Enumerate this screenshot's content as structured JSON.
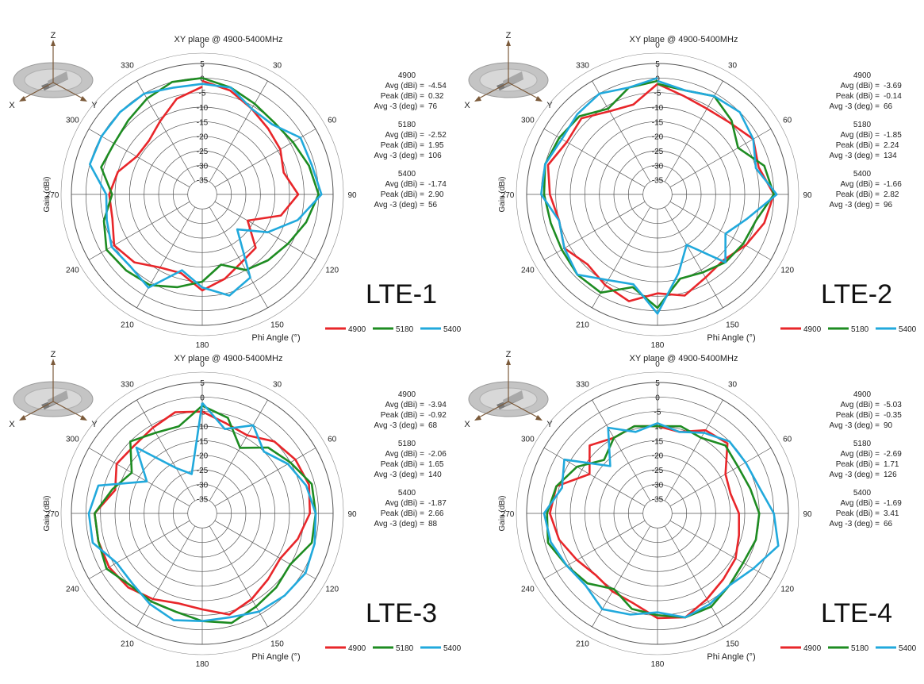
{
  "colors": {
    "4900": "#e8262a",
    "5180": "#1e8c22",
    "5400": "#21a9dc",
    "grid": "#555555",
    "text": "#222222"
  },
  "common": {
    "title": "XY plane @ 4900-5400MHz",
    "xlabel": "Phi  Angle (°)",
    "ylabel": "Gain  (dBi)",
    "angle_labels": [
      "0",
      "30",
      "60",
      "90",
      "120",
      "150",
      "180",
      "210",
      "240",
      "270",
      "300",
      "330"
    ],
    "radial_ticks": [
      "5",
      "0",
      "-5",
      "-10",
      "-15",
      "-20",
      "-25",
      "-30",
      "-35"
    ],
    "legend": [
      "4900",
      "5180",
      "5400"
    ],
    "icon_axes": [
      "Z",
      "X",
      "Y"
    ],
    "stat_labels": [
      "Avg (dBi) =",
      "Peak (dBi) =",
      "Avg -3 (deg) ="
    ]
  },
  "chart_data": [
    {
      "type": "polar-line",
      "label": "LTE-1",
      "rlim": [
        -40,
        5
      ],
      "theta_step_deg": 15,
      "stats": [
        {
          "freq": "4900",
          "avg": "-4.54",
          "peak": "0.32",
          "avg3": "76"
        },
        {
          "freq": "5180",
          "avg": "-2.52",
          "peak": "1.95",
          "avg3": "106"
        },
        {
          "freq": "5400",
          "avg": "-1.74",
          "peak": "2.90",
          "avg3": "56"
        }
      ],
      "series": [
        {
          "name": "4900",
          "values": [
            -1,
            -3,
            -6,
            -8,
            -9,
            -11,
            -7,
            -12,
            -22,
            -14,
            -13,
            -10,
            -7,
            -12,
            -11,
            -7,
            -5,
            -8,
            -8,
            -10,
            -14,
            -14,
            -11,
            -6,
            -3
          ]
        },
        {
          "name": "5180",
          "values": [
            0,
            -2,
            -4,
            -5,
            -4,
            -2,
            0,
            -3,
            -6,
            -8,
            -10,
            -15,
            -10,
            -7,
            -4,
            -3,
            -2,
            -5,
            -9,
            -4,
            -5,
            -4,
            -2,
            0,
            0
          ]
        },
        {
          "name": "5400",
          "values": [
            -2,
            -2,
            -6,
            -6,
            -1,
            -1,
            1,
            -6,
            -14,
            -23,
            -7,
            -4,
            -8,
            -13,
            -3,
            -5,
            -4,
            -6,
            -7,
            0,
            0,
            0,
            0,
            -2,
            -2
          ]
        }
      ]
    },
    {
      "type": "polar-line",
      "label": "LTE-2",
      "rlim": [
        -40,
        5
      ],
      "theta_step_deg": 15,
      "stats": [
        {
          "freq": "4900",
          "avg": "-3.69",
          "peak": "-0.14",
          "avg3": "66"
        },
        {
          "freq": "5180",
          "avg": "-1.85",
          "peak": "2.24",
          "avg3": "134"
        },
        {
          "freq": "5400",
          "avg": "-1.66",
          "peak": "2.82",
          "avg3": "96"
        }
      ],
      "series": [
        {
          "name": "4900",
          "values": [
            -2,
            -5,
            -6,
            -5,
            -2,
            -4,
            0,
            -2,
            -5,
            -8,
            -7,
            -4,
            -6,
            -2,
            -4,
            -6,
            -3,
            -5,
            -3,
            -1,
            -4,
            -3,
            -7,
            -8,
            -2
          ]
        },
        {
          "name": "5180",
          "values": [
            -2,
            -3,
            -1,
            -4,
            -8,
            -2,
            0,
            -5,
            -6,
            -7,
            -9,
            -10,
            -1,
            -7,
            -1,
            -1,
            -2,
            -2,
            -1,
            0,
            -1,
            -2,
            -6,
            -2,
            -1
          ]
        },
        {
          "name": "5400",
          "values": [
            -1,
            -3,
            -1,
            0,
            -2,
            -5,
            1,
            -8,
            -13,
            -7,
            -20,
            -12,
            1,
            -8,
            -6,
            -1,
            -3,
            -5,
            0,
            0,
            -2,
            -1,
            0,
            -2,
            0
          ]
        }
      ]
    },
    {
      "type": "polar-line",
      "label": "LTE-3",
      "rlim": [
        -40,
        5
      ],
      "theta_step_deg": 15,
      "stats": [
        {
          "freq": "4900",
          "avg": "-3.94",
          "peak": "-0.92",
          "avg3": "68"
        },
        {
          "freq": "5180",
          "avg": "-2.06",
          "peak": "1.65",
          "avg3": "140"
        },
        {
          "freq": "5400",
          "avg": "-1.87",
          "peak": "2.66",
          "avg3": "88"
        }
      ],
      "series": [
        {
          "name": "4900",
          "values": [
            -5,
            -8,
            -9,
            -5,
            -3,
            -2,
            -3,
            -6,
            -9,
            -8,
            -6,
            -4,
            -7,
            -8,
            -6,
            -4,
            -3,
            -3,
            -3,
            -9,
            -6,
            -7,
            -6,
            -4,
            -5
          ]
        },
        {
          "name": "5180",
          "values": [
            -3,
            -6,
            -14,
            -8,
            -5,
            -1,
            -1,
            -1,
            -5,
            -4,
            -3,
            -1,
            -3,
            -5,
            -5,
            -5,
            -2,
            -3,
            -3,
            -8,
            -12,
            -5,
            -8,
            -9,
            -3
          ]
        },
        {
          "name": "5400",
          "values": [
            -2,
            -10,
            -5,
            -10,
            -6,
            -3,
            -1,
            0,
            1,
            0,
            -1,
            -3,
            -3,
            -2,
            -4,
            -6,
            -6,
            -1,
            -1,
            -3,
            -18,
            -8,
            -22,
            -26,
            -2
          ]
        }
      ]
    },
    {
      "type": "polar-line",
      "label": "LTE-4",
      "rlim": [
        -40,
        5
      ],
      "theta_step_deg": 15,
      "stats": [
        {
          "freq": "4900",
          "avg": "-5.03",
          "peak": "-0.35",
          "avg3": "90"
        },
        {
          "freq": "5180",
          "avg": "-2.69",
          "peak": "1.71",
          "avg3": "126"
        },
        {
          "freq": "5400",
          "avg": "-1.69",
          "peak": "3.41",
          "avg3": "66"
        }
      ],
      "series": [
        {
          "name": "4900",
          "values": [
            -10,
            -11,
            -7,
            -6,
            -13,
            -14,
            -12,
            -11,
            -9,
            -8,
            -6,
            -3,
            -4,
            -8,
            -9,
            -10,
            -8,
            -5,
            -3,
            -4,
            -13,
            -7,
            -10,
            -9,
            -10
          ]
        },
        {
          "name": "5180",
          "values": [
            -10,
            -9,
            -10,
            -7,
            -8,
            -7,
            -5,
            -5,
            -6,
            -5,
            -3,
            -3,
            -5,
            -6,
            -10,
            -6,
            -4,
            -1,
            -2,
            -4,
            -8,
            -14,
            -10,
            -9,
            -10
          ]
        },
        {
          "name": "5400",
          "values": [
            -9,
            -11,
            -8,
            -5,
            -5,
            -4,
            0,
            3,
            -2,
            -5,
            -4,
            -3,
            -6,
            -4,
            -2,
            -5,
            -4,
            -2,
            -1,
            -6,
            -3,
            -17,
            -6,
            -11,
            -9
          ]
        }
      ]
    }
  ]
}
